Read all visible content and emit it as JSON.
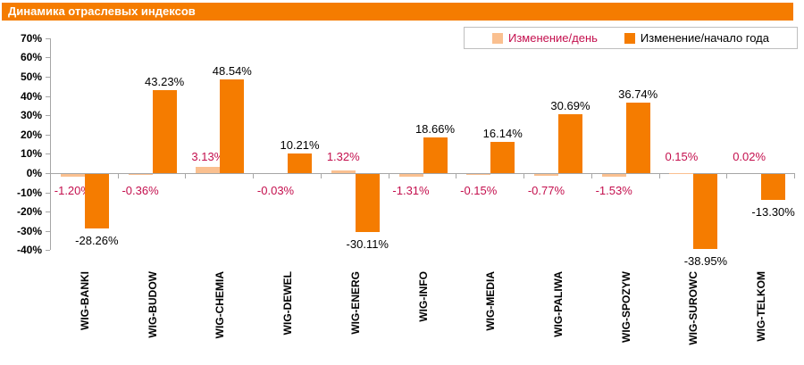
{
  "title": "Динамика отраслевых индексов",
  "colors": {
    "accent_orange": "#F57C00",
    "peach": "#FAC090",
    "red_label": "#C4104E",
    "axis_gray": "#A6A6A6",
    "legend_border": "#BFBFBF"
  },
  "chart_data": {
    "type": "bar",
    "title": "Динамика отраслевых индексов",
    "categories": [
      "WIG-BANKI",
      "WIG-BUDOW",
      "WIG-CHEMIA",
      "WIG-DEWEL",
      "WIG-ENERG",
      "WIG-INFO",
      "WIG-MEDIA",
      "WIG-PALIWA",
      "WIG-SPOZYW",
      "WIG-SUROWC",
      "WIG-TELKOM"
    ],
    "series": [
      {
        "name": "Изменение/день",
        "color": "#FAC090",
        "label_color": "#C4104E",
        "values": [
          -1.2,
          -0.36,
          3.13,
          -0.03,
          1.32,
          -1.31,
          -0.15,
          -0.77,
          -1.53,
          0.15,
          0.02
        ],
        "labels": [
          "-1.20%",
          "-0.36%",
          "3.13%",
          "-0.03%",
          "1.32%",
          "-1.31%",
          "-0.15%",
          "-0.77%",
          "-1.53%",
          "0.15%",
          "0.02%"
        ]
      },
      {
        "name": "Изменение/начало года",
        "color": "#F57C00",
        "label_color": "#000000",
        "values": [
          -28.26,
          43.23,
          48.54,
          10.21,
          -30.11,
          18.66,
          16.14,
          30.69,
          36.74,
          -38.95,
          -13.3
        ],
        "labels": [
          "-28.26%",
          "43.23%",
          "48.54%",
          "10.21%",
          "-30.11%",
          "18.66%",
          "16.14%",
          "30.69%",
          "36.74%",
          "-38.95%",
          "-13.30%"
        ]
      }
    ],
    "y_ticks": [
      "70%",
      "60%",
      "50%",
      "40%",
      "30%",
      "20%",
      "10%",
      "0%",
      "-10%",
      "-20%",
      "-30%",
      "-40%"
    ],
    "y_tick_values": [
      70,
      60,
      50,
      40,
      30,
      20,
      10,
      0,
      -10,
      -20,
      -30,
      -40
    ],
    "ylim": [
      -40,
      70
    ],
    "grid": "off",
    "legend_position": "top-right",
    "xlabel": "",
    "ylabel": ""
  }
}
